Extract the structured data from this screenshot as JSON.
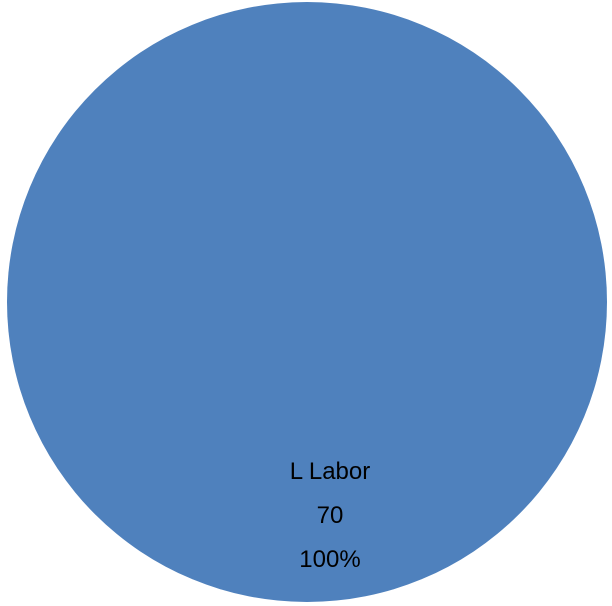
{
  "chart_data": {
    "type": "pie",
    "title": "",
    "slices": [
      {
        "name": "L Labor",
        "value": 70,
        "percent": "100%",
        "color": "#4F81BD"
      }
    ],
    "legend": "none",
    "data_labels": [
      "category",
      "value",
      "percent"
    ]
  }
}
